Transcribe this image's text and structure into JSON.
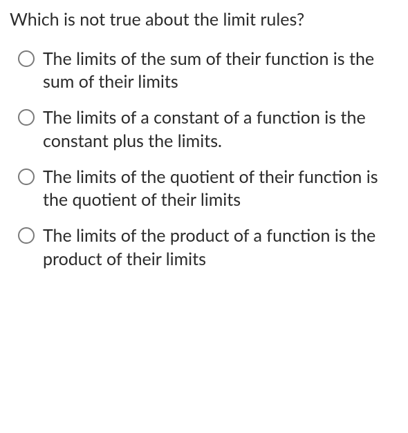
{
  "question": "Which is not true about the limit rules?",
  "options": [
    {
      "text": "The limits of the sum of their function is the sum of their limits"
    },
    {
      "text": "The limits of a constant of a function is the constant plus the limits."
    },
    {
      "text": "The limits of the quotient of their function is the quotient of their limits"
    },
    {
      "text": "The limits of the product of a function is the product of their limits"
    }
  ],
  "colors": {
    "text": "#2b2b2b",
    "radio_border": "#7a7a7a",
    "background": "#ffffff"
  },
  "typography": {
    "font_family": "Segoe UI / Lato / system sans-serif",
    "question_fontsize": 25,
    "option_fontsize": 25,
    "line_height": 1.35
  }
}
